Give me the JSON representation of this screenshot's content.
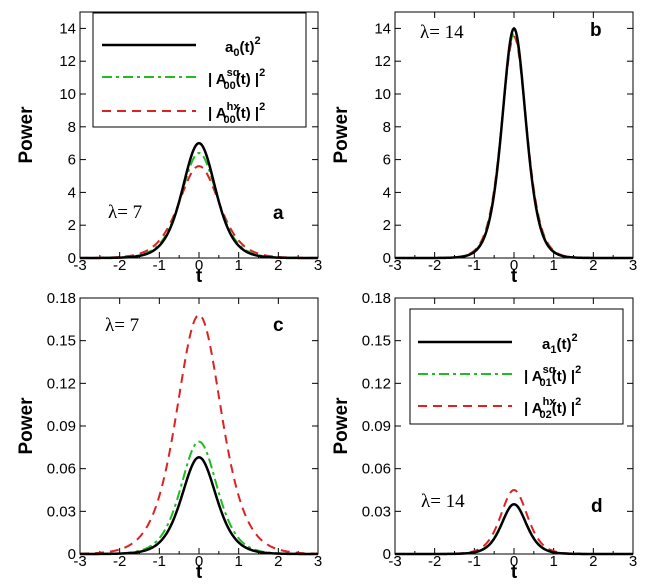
{
  "colors": {
    "solid": "#000000",
    "dashdot": "#22bb22",
    "dashed": "#dd2222"
  },
  "chart_data": [
    {
      "panel": "a",
      "type": "line",
      "xlabel": "t",
      "ylabel": "Power",
      "xlim": [
        -3,
        3
      ],
      "ylim": [
        0,
        15
      ],
      "xticks": [
        "-3",
        "-2",
        "-1",
        "0",
        "1",
        "2",
        "3"
      ],
      "yticks": [
        "0",
        "2",
        "4",
        "6",
        "8",
        "10",
        "12",
        "14"
      ],
      "annotation": "λ= 7",
      "legend_location": "top-left",
      "series": [
        {
          "name": "a0(t)^2",
          "style": "solid",
          "peak": 7.0,
          "width": 0.56,
          "x": [
            -3,
            -1.5,
            -1,
            -0.5,
            0,
            0.5,
            1,
            1.5,
            3
          ],
          "y": [
            0,
            0.02,
            0.2,
            2.6,
            7.0,
            2.6,
            0.2,
            0.02,
            0
          ]
        },
        {
          "name": "| A00sq(t) |^2",
          "style": "dashdot",
          "peak": 6.4,
          "width": 0.6,
          "x": [
            -3,
            -1.5,
            -1,
            -0.5,
            0,
            0.5,
            1,
            1.5,
            3
          ],
          "y": [
            0,
            0.03,
            0.3,
            2.8,
            6.4,
            2.8,
            0.3,
            0.03,
            0
          ]
        },
        {
          "name": "| A00hx(t) |^2",
          "style": "dashed",
          "peak": 5.6,
          "width": 0.68,
          "x": [
            -3,
            -1.5,
            -1,
            -0.5,
            0,
            0.5,
            1,
            1.5,
            3
          ],
          "y": [
            0,
            0.05,
            0.5,
            3.0,
            5.6,
            3.0,
            0.5,
            0.05,
            0
          ]
        }
      ]
    },
    {
      "panel": "b",
      "type": "line",
      "xlabel": "t",
      "ylabel": "Power",
      "xlim": [
        -3,
        3
      ],
      "ylim": [
        0,
        15
      ],
      "xticks": [
        "-3",
        "-2",
        "-1",
        "0",
        "1",
        "2",
        "3"
      ],
      "yticks": [
        "0",
        "2",
        "4",
        "6",
        "8",
        "10",
        "12",
        "14"
      ],
      "annotation": "λ= 14",
      "series": [
        {
          "name": "a0(t)^2",
          "style": "solid",
          "peak": 14.0,
          "width": 0.4,
          "x": [
            -3,
            -1,
            -0.5,
            0,
            0.5,
            1,
            3
          ],
          "y": [
            0,
            0.1,
            4.0,
            14.0,
            4.0,
            0.1,
            0
          ]
        },
        {
          "name": "| A00sq(t) |^2",
          "style": "dashdot",
          "peak": 13.7,
          "width": 0.41,
          "x": [
            -3,
            -1,
            -0.5,
            0,
            0.5,
            1,
            3
          ],
          "y": [
            0,
            0.1,
            4.0,
            13.7,
            4.0,
            0.1,
            0
          ]
        },
        {
          "name": "| A00hx(t) |^2",
          "style": "dashed",
          "peak": 13.5,
          "width": 0.42,
          "x": [
            -3,
            -1,
            -0.5,
            0,
            0.5,
            1,
            3
          ],
          "y": [
            0,
            0.1,
            4.1,
            13.5,
            4.1,
            0.1,
            0
          ]
        }
      ]
    },
    {
      "panel": "c",
      "type": "line",
      "xlabel": "t",
      "ylabel": "Power",
      "xlim": [
        -3,
        3
      ],
      "ylim": [
        0,
        0.18
      ],
      "xticks": [
        "-3",
        "-2",
        "-1",
        "0",
        "1",
        "2",
        "3"
      ],
      "yticks": [
        "0",
        "0.03",
        "0.06",
        "0.09",
        "0.12",
        "0.15",
        "0.18"
      ],
      "annotation": "λ= 7",
      "series": [
        {
          "name": "a1(t)^2",
          "style": "solid",
          "peak": 0.068,
          "width": 0.58,
          "x": [
            -3,
            -2,
            -1,
            -0.5,
            0,
            0.5,
            1,
            2,
            3
          ],
          "y": [
            0,
            0.001,
            0.012,
            0.045,
            0.068,
            0.045,
            0.012,
            0.001,
            0
          ]
        },
        {
          "name": "| A01sq(t) |^2",
          "style": "dashdot",
          "peak": 0.079,
          "width": 0.61,
          "x": [
            -3,
            -2,
            -1,
            -0.5,
            0,
            0.5,
            1,
            2,
            3
          ],
          "y": [
            0,
            0.002,
            0.016,
            0.054,
            0.079,
            0.054,
            0.016,
            0.002,
            0
          ]
        },
        {
          "name": "| A02hx(t) |^2",
          "style": "dashed",
          "peak": 0.168,
          "width": 0.75,
          "x": [
            -3,
            -2,
            -1,
            -0.5,
            0,
            0.5,
            1,
            2,
            3
          ],
          "y": [
            0,
            0.007,
            0.055,
            0.13,
            0.168,
            0.13,
            0.055,
            0.007,
            0
          ]
        }
      ]
    },
    {
      "panel": "d",
      "type": "line",
      "xlabel": "t",
      "ylabel": "Power",
      "xlim": [
        -3,
        3
      ],
      "ylim": [
        0,
        0.18
      ],
      "xticks": [
        "-3",
        "-2",
        "-1",
        "0",
        "1",
        "2",
        "3"
      ],
      "yticks": [
        "0",
        "0.03",
        "0.06",
        "0.09",
        "0.12",
        "0.15",
        "0.18"
      ],
      "annotation": "λ= 14",
      "legend_location": "top-right",
      "series": [
        {
          "name": "a1(t)^2",
          "style": "solid",
          "peak": 0.035,
          "width": 0.42,
          "x": [
            -3,
            -1,
            -0.5,
            0,
            0.5,
            1,
            3
          ],
          "y": [
            0,
            0.002,
            0.017,
            0.035,
            0.017,
            0.002,
            0
          ]
        },
        {
          "name": "| A01sq(t) |^2",
          "style": "dashdot",
          "peak": 0.035,
          "width": 0.43,
          "x": [
            -3,
            -1,
            -0.5,
            0,
            0.5,
            1,
            3
          ],
          "y": [
            0,
            0.002,
            0.018,
            0.035,
            0.018,
            0.002,
            0
          ]
        },
        {
          "name": "| A02hx(t) |^2",
          "style": "dashed",
          "peak": 0.045,
          "width": 0.45,
          "x": [
            -3,
            -1,
            -0.5,
            0,
            0.5,
            1,
            3
          ],
          "y": [
            0,
            0.003,
            0.024,
            0.045,
            0.024,
            0.003,
            0
          ]
        }
      ]
    }
  ],
  "legend_a": {
    "row1": {
      "base": "a",
      "sub": "0",
      "rest": "(t)",
      "sup": "2"
    },
    "row2": {
      "pre": "| A",
      "sup": "sq",
      "sub": "00",
      "post": "(t) |",
      "pow": "2"
    },
    "row3": {
      "pre": "| A",
      "sup": "hx",
      "sub": "00",
      "post": "(t) |",
      "pow": "2"
    }
  },
  "legend_d": {
    "row1": {
      "base": "a",
      "sub": "1",
      "rest": "(t)",
      "sup": "2"
    },
    "row2": {
      "pre": "| A",
      "sup": "sq",
      "sub": "01",
      "post": "(t) |",
      "pow": "2"
    },
    "row3": {
      "pre": "| A",
      "sup": "hx",
      "sub": "02",
      "post": "(t) |",
      "pow": "2"
    }
  }
}
